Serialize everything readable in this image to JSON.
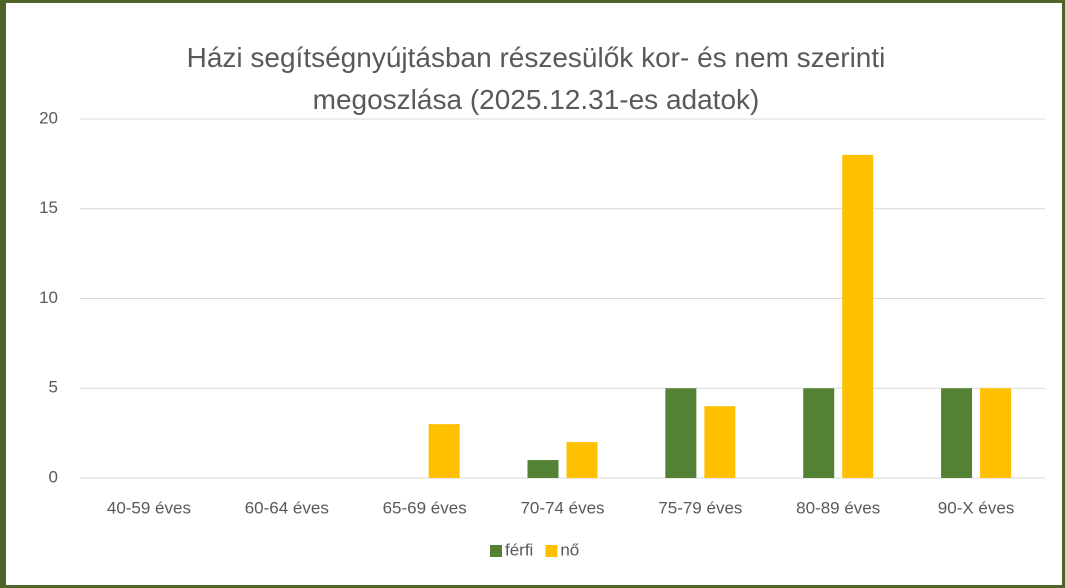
{
  "chart_data": {
    "type": "bar",
    "title": "Házi segítségnyújtásban részesülők kor- és nem szerinti megoszlása (2025.12.31-es adatok)",
    "categories": [
      "40-59 éves",
      "60-64 éves",
      "65-69 éves",
      "70-74 éves",
      "75-79 éves",
      "80-89 éves",
      "90-X éves"
    ],
    "series": [
      {
        "name": "férfi",
        "color": "#548235",
        "values": [
          0,
          0,
          0,
          1,
          5,
          5,
          5
        ]
      },
      {
        "name": "nő",
        "color": "#ffc000",
        "values": [
          0,
          0,
          3,
          2,
          4,
          18,
          5
        ]
      }
    ],
    "ylim": [
      0,
      20
    ],
    "yticks": [
      0,
      5,
      10,
      15,
      20
    ],
    "grid": true,
    "legend": "bottom"
  }
}
